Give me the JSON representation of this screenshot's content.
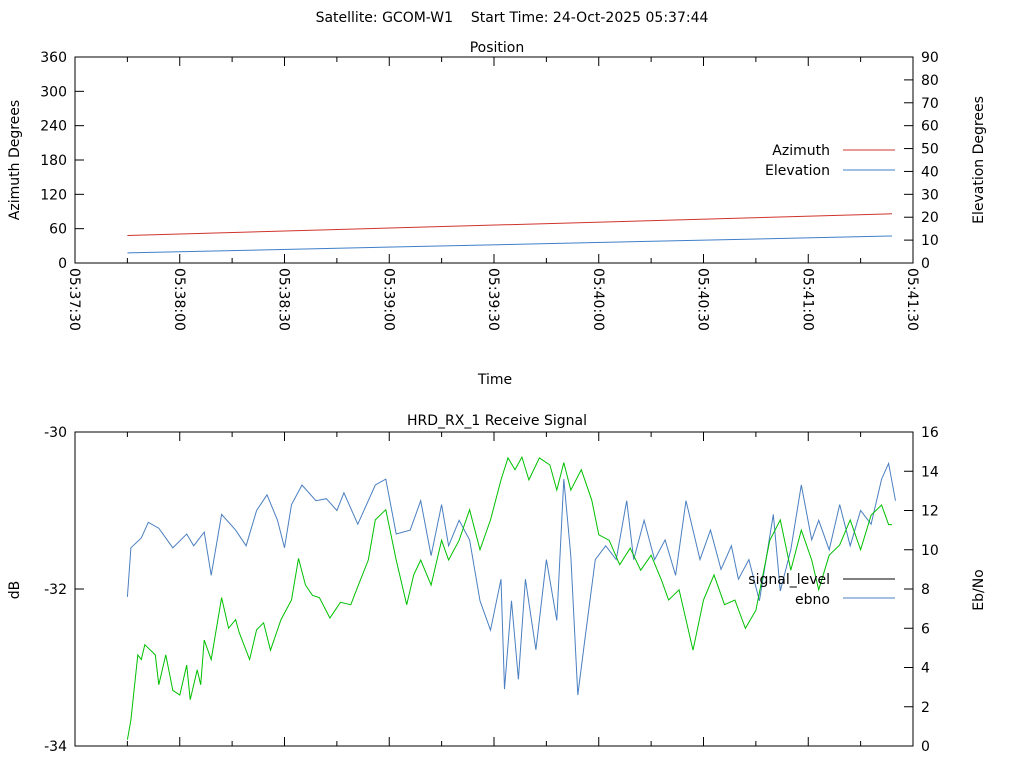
{
  "header": {
    "title": "Satellite: GCOM-W1    Start Time: 24-Oct-2025 05:37:44"
  },
  "colors": {
    "azimuth": "#d0342c",
    "elevation": "#3f7fc8",
    "ebno": "#4a7fc0",
    "signal_level": "#000000",
    "green": "#00c000"
  },
  "chart_data": [
    {
      "type": "line",
      "title": "Position",
      "xlabel": "Time",
      "ylabel": "Azimuth Degrees",
      "y2label": "Elevation Degrees",
      "xlim": [
        "05:37:30",
        "05:41:30"
      ],
      "xticks": [
        "05:37:30",
        "05:38:00",
        "05:38:30",
        "05:39:00",
        "05:39:30",
        "05:40:00",
        "05:40:30",
        "05:41:00",
        "05:41:30"
      ],
      "ylim": [
        0,
        360
      ],
      "yticks": [
        0,
        60,
        120,
        180,
        240,
        300,
        360
      ],
      "y2lim": [
        0,
        90
      ],
      "y2ticks": [
        0,
        10,
        20,
        30,
        40,
        50,
        60,
        70,
        80,
        90
      ],
      "legend": "right",
      "series": [
        {
          "name": "Azimuth",
          "axis": "y",
          "x": [
            "05:37:45",
            "05:41:24"
          ],
          "values": [
            48,
            86
          ]
        },
        {
          "name": "Elevation",
          "axis": "y2",
          "x": [
            "05:37:45",
            "05:41:24"
          ],
          "values": [
            4.4,
            11.8
          ]
        }
      ]
    },
    {
      "type": "line",
      "title": "HRD_RX_1 Receive Signal",
      "ylabel": "dB",
      "y2label": "Eb/No",
      "xlim": [
        "05:37:30",
        "05:41:30"
      ],
      "ylim": [
        -34,
        -30
      ],
      "yticks": [
        -34,
        -32,
        -30
      ],
      "y2lim": [
        0,
        16
      ],
      "y2ticks": [
        0,
        2,
        4,
        6,
        8,
        10,
        12,
        14,
        16
      ],
      "legend": "right",
      "series": [
        {
          "name": "signal_level",
          "axis": "y",
          "x": [],
          "values": []
        },
        {
          "name": "ebno",
          "axis": "y2",
          "x": [
            "05:37:45",
            "05:37:46",
            "05:37:49",
            "05:37:51",
            "05:37:54",
            "05:37:58",
            "05:38:02",
            "05:38:04",
            "05:38:07",
            "05:38:09",
            "05:38:12",
            "05:38:16",
            "05:38:19",
            "05:38:22",
            "05:38:25",
            "05:38:28",
            "05:38:30",
            "05:38:32",
            "05:38:35",
            "05:38:39",
            "05:38:42",
            "05:38:45",
            "05:38:47",
            "05:38:51",
            "05:38:56",
            "05:38:59",
            "05:39:02",
            "05:39:06",
            "05:39:09",
            "05:39:12",
            "05:39:15",
            "05:39:17",
            "05:39:20",
            "05:39:23",
            "05:39:26",
            "05:39:29",
            "05:39:32",
            "05:39:33",
            "05:39:35",
            "05:39:37",
            "05:39:39",
            "05:39:42",
            "05:39:45",
            "05:39:48",
            "05:39:50",
            "05:39:52",
            "05:39:54",
            "05:39:56",
            "05:39:59",
            "05:40:02",
            "05:40:05",
            "05:40:08",
            "05:40:10",
            "05:40:13",
            "05:40:16",
            "05:40:19",
            "05:40:22",
            "05:40:25",
            "05:40:29",
            "05:40:32",
            "05:40:35",
            "05:40:38",
            "05:40:40",
            "05:40:43",
            "05:40:46",
            "05:40:50",
            "05:40:52",
            "05:40:55",
            "05:40:58",
            "05:41:01",
            "05:41:03",
            "05:41:06",
            "05:41:09",
            "05:41:12",
            "05:41:15",
            "05:41:18",
            "05:41:21",
            "05:41:23",
            "05:41:25"
          ],
          "values": [
            7.6,
            10.1,
            10.6,
            11.4,
            11.1,
            10.1,
            10.8,
            10.2,
            10.9,
            8.7,
            11.8,
            11.0,
            10.2,
            12.0,
            12.8,
            11.5,
            10.1,
            12.3,
            13.3,
            12.5,
            12.6,
            12.0,
            12.9,
            11.3,
            13.3,
            13.6,
            10.8,
            11.0,
            12.5,
            9.7,
            12.3,
            10.2,
            11.5,
            10.5,
            7.4,
            5.9,
            8.5,
            2.9,
            7.4,
            3.4,
            8.5,
            4.9,
            9.5,
            6.4,
            13.6,
            9.7,
            2.6,
            5.4,
            9.5,
            10.2,
            9.5,
            12.5,
            9.5,
            11.5,
            9.5,
            10.5,
            8.7,
            12.5,
            9.5,
            11.0,
            9.0,
            10.2,
            8.5,
            9.5,
            7.4,
            11.8,
            7.9,
            10.0,
            13.3,
            10.5,
            11.5,
            10.0,
            12.3,
            10.2,
            12.0,
            11.3,
            13.6,
            14.4,
            12.5
          ]
        },
        {
          "axis": "y",
          "color": "green",
          "x": [
            "05:37:45",
            "05:37:46",
            "05:37:48",
            "05:37:49",
            "05:37:50",
            "05:37:53",
            "05:37:54",
            "05:37:56",
            "05:37:58",
            "05:38:00",
            "05:38:02",
            "05:38:03",
            "05:38:05",
            "05:38:06",
            "05:38:07",
            "05:38:09",
            "05:38:12",
            "05:38:14",
            "05:38:16",
            "05:38:17",
            "05:38:20",
            "05:38:22",
            "05:38:24",
            "05:38:26",
            "05:38:29",
            "05:38:32",
            "05:38:34",
            "05:38:36",
            "05:38:38",
            "05:38:40",
            "05:38:43",
            "05:38:46",
            "05:38:49",
            "05:38:51",
            "05:38:54",
            "05:38:56",
            "05:38:59",
            "05:39:02",
            "05:39:05",
            "05:39:07",
            "05:39:09",
            "05:39:12",
            "05:39:15",
            "05:39:17",
            "05:39:20",
            "05:39:23",
            "05:39:26",
            "05:39:29",
            "05:39:32",
            "05:39:34",
            "05:39:36",
            "05:39:38",
            "05:39:40",
            "05:39:43",
            "05:39:46",
            "05:39:48",
            "05:39:50",
            "05:39:52",
            "05:39:55",
            "05:39:58",
            "05:40:00",
            "05:40:03",
            "05:40:06",
            "05:40:09",
            "05:40:12",
            "05:40:15",
            "05:40:18",
            "05:40:20",
            "05:40:23",
            "05:40:27",
            "05:40:30",
            "05:40:33",
            "05:40:36",
            "05:40:39",
            "05:40:42",
            "05:40:45",
            "05:40:49",
            "05:40:52",
            "05:40:55",
            "05:40:58",
            "05:41:01",
            "05:41:03",
            "05:41:06",
            "05:41:09",
            "05:41:12",
            "05:41:15",
            "05:41:18",
            "05:41:21",
            "05:41:23",
            "05:41:24"
          ],
          "values": [
            -33.92,
            -33.67,
            -32.84,
            -32.9,
            -32.71,
            -32.84,
            -33.22,
            -32.84,
            -33.29,
            -33.35,
            -32.97,
            -33.41,
            -33.03,
            -33.22,
            -32.65,
            -32.9,
            -32.11,
            -32.5,
            -32.39,
            -32.55,
            -32.9,
            -32.52,
            -32.43,
            -32.78,
            -32.39,
            -32.14,
            -31.61,
            -31.95,
            -32.08,
            -32.11,
            -32.37,
            -32.17,
            -32.2,
            -31.97,
            -31.63,
            -31.12,
            -30.99,
            -31.63,
            -32.2,
            -31.82,
            -31.63,
            -31.95,
            -31.38,
            -31.63,
            -31.38,
            -30.99,
            -31.5,
            -31.12,
            -30.61,
            -30.33,
            -30.48,
            -30.32,
            -30.61,
            -30.33,
            -30.42,
            -30.74,
            -30.39,
            -30.74,
            -30.48,
            -30.87,
            -31.31,
            -31.38,
            -31.69,
            -31.48,
            -31.76,
            -31.57,
            -31.89,
            -32.14,
            -32.01,
            -32.78,
            -32.14,
            -31.82,
            -32.2,
            -32.14,
            -32.5,
            -32.27,
            -31.38,
            -31.12,
            -31.76,
            -31.25,
            -31.63,
            -32.01,
            -31.57,
            -31.44,
            -31.12,
            -31.5,
            -31.06,
            -30.93,
            -31.18,
            -31.18
          ]
        }
      ]
    }
  ]
}
